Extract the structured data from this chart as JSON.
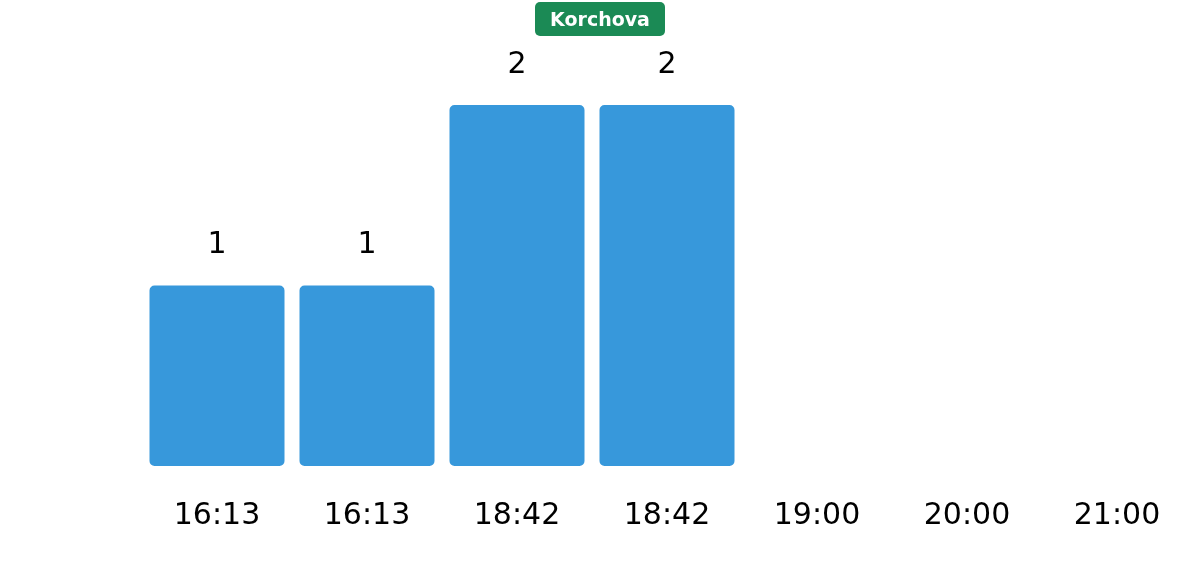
{
  "chart_data": {
    "type": "bar",
    "title": "Korchova",
    "categories": [
      "16:13",
      "16:13",
      "18:42",
      "18:42",
      "19:00",
      "20:00",
      "21:00"
    ],
    "values": [
      1,
      1,
      2,
      2,
      null,
      null,
      null
    ],
    "color": "#3798db",
    "data_labels": true
  }
}
